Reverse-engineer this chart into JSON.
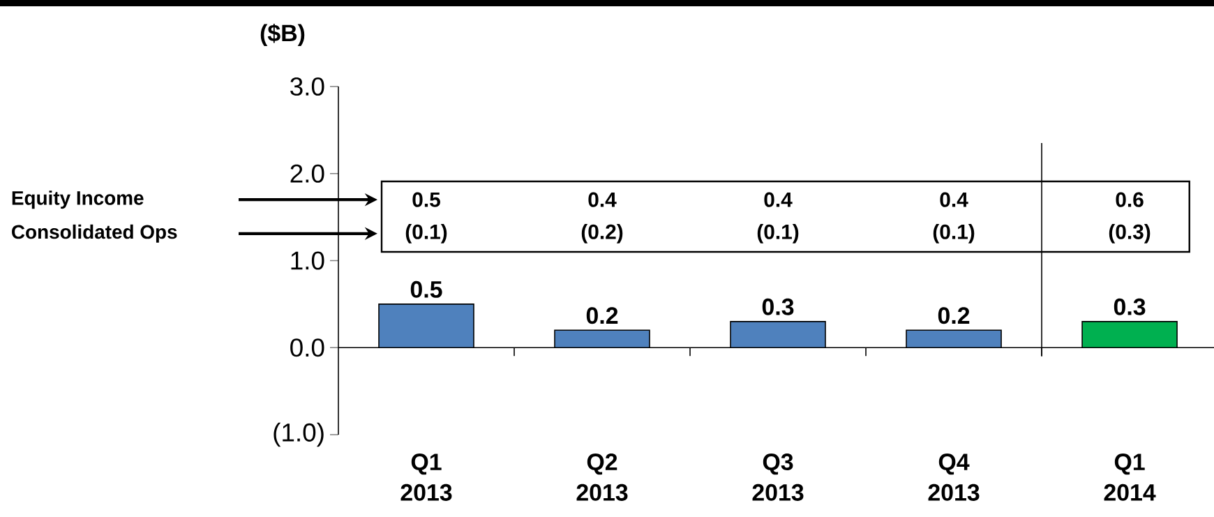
{
  "chart_data": {
    "type": "bar",
    "ylabel": "($B)",
    "categories": [
      "Q1 2013",
      "Q2 2013",
      "Q3 2013",
      "Q4 2013",
      "Q1 2014"
    ],
    "values": [
      0.5,
      0.2,
      0.3,
      0.2,
      0.3
    ],
    "colors": [
      "#4f81bd",
      "#4f81bd",
      "#4f81bd",
      "#4f81bd",
      "#00b050"
    ],
    "data_labels": true,
    "ylim": [
      -1,
      3
    ],
    "yticks": [
      {
        "value": -1,
        "label": "(1.0)"
      },
      {
        "value": 0,
        "label": "0.0"
      },
      {
        "value": 1,
        "label": "1.0"
      },
      {
        "value": 2,
        "label": "2.0"
      },
      {
        "value": 3,
        "label": "3.0"
      }
    ],
    "annotations": [
      "Equity Income",
      "Consolidated Ops",
      "0.5",
      "(0.1)",
      "0.4",
      "(0.2)",
      "0.4",
      "(0.1)",
      "0.4",
      "(0.1)",
      "0.6",
      "(0.3)"
    ]
  }
}
